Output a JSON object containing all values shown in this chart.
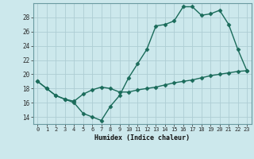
{
  "line1_x": [
    0,
    1,
    2,
    3,
    4,
    5,
    6,
    7,
    8,
    9,
    10,
    11,
    12,
    13,
    14,
    15,
    16,
    17,
    18,
    19,
    20,
    21,
    22,
    23
  ],
  "line1_y": [
    19.0,
    18.0,
    17.0,
    16.5,
    16.0,
    14.5,
    14.0,
    13.5,
    15.5,
    17.0,
    19.5,
    21.5,
    23.5,
    26.8,
    27.0,
    27.5,
    29.5,
    29.5,
    28.3,
    28.5,
    29.0,
    27.0,
    23.5,
    20.5
  ],
  "line2_x": [
    0,
    1,
    2,
    3,
    4,
    5,
    6,
    7,
    8,
    9,
    10,
    11,
    12,
    13,
    14,
    15,
    16,
    17,
    18,
    19,
    20,
    21,
    22,
    23
  ],
  "line2_y": [
    19.0,
    18.0,
    17.0,
    16.5,
    16.2,
    17.2,
    17.8,
    18.2,
    18.0,
    17.5,
    17.5,
    17.8,
    18.0,
    18.2,
    18.5,
    18.8,
    19.0,
    19.2,
    19.5,
    19.8,
    20.0,
    20.2,
    20.4,
    20.5
  ],
  "line_color": "#1a6b5a",
  "bg_color": "#cce8ec",
  "grid_color": "#aecdd4",
  "xlabel": "Humidex (Indice chaleur)",
  "xticks": [
    0,
    1,
    2,
    3,
    4,
    5,
    6,
    7,
    8,
    9,
    10,
    11,
    12,
    13,
    14,
    15,
    16,
    17,
    18,
    19,
    20,
    21,
    22,
    23
  ],
  "yticks": [
    14,
    16,
    18,
    20,
    22,
    24,
    26,
    28
  ],
  "ylim": [
    13.0,
    30.0
  ],
  "xlim": [
    -0.5,
    23.5
  ],
  "marker": "D",
  "markersize": 2.5,
  "linewidth": 1.0
}
